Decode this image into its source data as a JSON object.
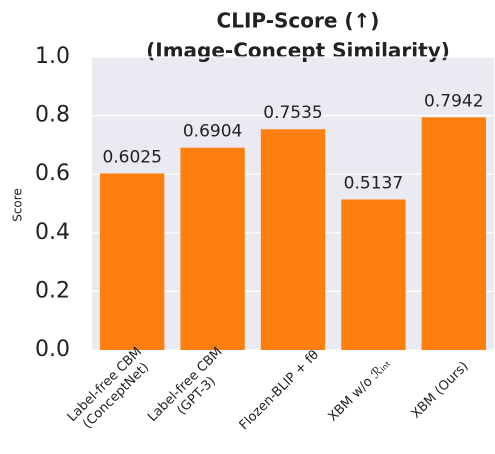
{
  "chart_data": {
    "type": "bar",
    "title": [
      "CLIP-Score (↑)",
      "(Image-Concept Similarity)"
    ],
    "y_label": "Score",
    "categories": [
      [
        "Label-free CBM",
        "(ConceptNet)"
      ],
      [
        "Label-free CBM",
        "(GPT-3)"
      ],
      [
        "Flozen-BLIP + fθ"
      ],
      [
        "XBM w/o ℛᵢₙₜ"
      ],
      [
        "XBM (Ours)"
      ]
    ],
    "values": [
      0.6025,
      0.6904,
      0.7535,
      0.5137,
      0.7942
    ],
    "color": "#ff7f0e",
    "ylim": [
      0,
      1
    ],
    "yticks": [
      {
        "value": 0,
        "label": "0.0"
      },
      0.2,
      0.4,
      0.6,
      0.8,
      {
        "value": 1,
        "label": "1.0"
      }
    ],
    "grid": true
  }
}
